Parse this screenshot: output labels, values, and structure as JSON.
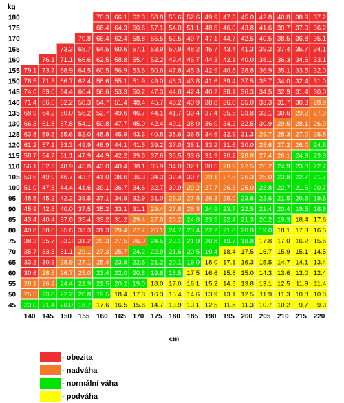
{
  "chart_data": {
    "type": "heatmap",
    "ylabel": "kg",
    "xlabel": "cm",
    "heights": [
      140,
      145,
      150,
      155,
      160,
      165,
      170,
      175,
      180,
      185,
      190,
      195,
      200,
      205,
      210,
      215,
      220
    ],
    "weights": [
      180,
      175,
      170,
      165,
      160,
      155,
      150,
      145,
      140,
      135,
      130,
      125,
      120,
      115,
      110,
      105,
      100,
      95,
      90,
      85,
      80,
      75,
      70,
      65,
      60,
      55,
      50,
      45
    ],
    "values": [
      [
        null,
        null,
        null,
        null,
        70.3,
        66.1,
        62.3,
        58.8,
        55.6,
        52.6,
        49.9,
        47.3,
        45.0,
        42.8,
        40.8,
        38.9,
        37.2
      ],
      [
        null,
        null,
        null,
        null,
        68.4,
        64.3,
        60.6,
        57.1,
        54.0,
        51.1,
        48.5,
        46.0,
        43.8,
        41.6,
        39.7,
        37.9,
        36.2
      ],
      [
        null,
        null,
        null,
        70.8,
        66.4,
        62.4,
        58.8,
        55.5,
        52.5,
        49.7,
        47.1,
        44.7,
        42.5,
        40.5,
        38.5,
        36.8,
        35.1
      ],
      [
        null,
        null,
        73.3,
        68.7,
        64.5,
        60.6,
        57.1,
        53.9,
        50.9,
        48.2,
        45.7,
        43.4,
        41.3,
        39.3,
        37.4,
        35.7,
        34.1
      ],
      [
        null,
        76.1,
        71.1,
        66.6,
        62.5,
        58.8,
        55.4,
        52.2,
        49.4,
        46.7,
        44.3,
        42.1,
        40.0,
        38.1,
        36.3,
        34.6,
        33.1
      ],
      [
        79.1,
        73.7,
        68.9,
        64.5,
        60.5,
        56.9,
        53.6,
        50.6,
        47.8,
        45.3,
        42.9,
        40.8,
        38.8,
        36.9,
        35.1,
        33.5,
        32.0
      ],
      [
        76.5,
        71.3,
        66.7,
        62.4,
        58.6,
        55.1,
        51.9,
        49.0,
        46.3,
        43.8,
        41.6,
        39.4,
        37.5,
        35.7,
        34.0,
        32.4,
        31.0
      ],
      [
        74.0,
        69.0,
        64.4,
        60.4,
        56.6,
        53.3,
        50.2,
        47.3,
        44.8,
        42.4,
        40.2,
        38.1,
        36.3,
        34.5,
        32.9,
        31.4,
        30.0
      ],
      [
        71.4,
        66.6,
        62.2,
        58.3,
        54.7,
        51.4,
        48.4,
        45.7,
        43.2,
        40.9,
        38.8,
        36.8,
        35.0,
        33.3,
        31.7,
        30.3,
        28.9
      ],
      [
        68.9,
        64.2,
        60.0,
        56.2,
        52.7,
        49.6,
        46.7,
        44.1,
        41.7,
        39.4,
        37.4,
        35.5,
        33.8,
        32.1,
        30.6,
        29.2,
        27.9
      ],
      [
        66.3,
        61.8,
        57.8,
        54.1,
        50.8,
        47.7,
        45.0,
        42.4,
        40.1,
        38.0,
        36.0,
        34.2,
        32.5,
        30.9,
        29.5,
        28.1,
        26.9
      ],
      [
        63.8,
        59.5,
        55.6,
        52.0,
        48.8,
        45.9,
        43.3,
        40.8,
        38.6,
        36.5,
        34.6,
        32.9,
        31.3,
        29.7,
        28.3,
        27.0,
        25.8
      ],
      [
        61.2,
        57.1,
        53.3,
        49.9,
        46.9,
        44.1,
        41.5,
        39.2,
        37.0,
        35.1,
        33.2,
        31.6,
        30.0,
        28.6,
        27.2,
        26.0,
        24.8
      ],
      [
        58.7,
        54.7,
        51.1,
        47.9,
        44.9,
        42.2,
        39.8,
        37.6,
        35.5,
        33.6,
        31.9,
        30.2,
        28.8,
        27.4,
        26.1,
        24.9,
        23.8
      ],
      [
        56.1,
        52.3,
        48.9,
        45.8,
        43.0,
        40.4,
        38.1,
        35.9,
        34.0,
        32.1,
        30.5,
        28.9,
        27.5,
        26.2,
        24.9,
        23.8,
        22.7
      ],
      [
        53.6,
        49.9,
        46.7,
        43.7,
        41.0,
        38.6,
        36.3,
        34.3,
        32.4,
        30.7,
        29.1,
        27.6,
        26.3,
        25.0,
        23.8,
        22.7,
        21.7
      ],
      [
        51.0,
        47.6,
        44.4,
        41.6,
        39.1,
        36.7,
        34.6,
        32.7,
        30.9,
        29.2,
        27.7,
        26.3,
        25.0,
        23.8,
        22.7,
        21.6,
        20.7
      ],
      [
        48.5,
        45.2,
        42.2,
        39.5,
        37.1,
        34.9,
        32.9,
        31.0,
        29.3,
        27.8,
        26.3,
        25.0,
        23.8,
        22.6,
        21.5,
        20.6,
        19.6
      ],
      [
        45.9,
        42.8,
        40.0,
        37.5,
        35.2,
        33.1,
        31.1,
        29.4,
        27.8,
        26.3,
        24.9,
        23.7,
        22.5,
        21.4,
        20.4,
        19.5,
        18.6
      ],
      [
        43.4,
        40.4,
        37.8,
        35.4,
        33.2,
        31.2,
        29.4,
        27.8,
        26.2,
        24.8,
        23.5,
        22.4,
        21.3,
        20.2,
        19.3,
        18.4,
        17.6
      ],
      [
        40.8,
        38.0,
        35.6,
        33.3,
        31.3,
        29.4,
        27.7,
        26.1,
        24.7,
        23.4,
        22.2,
        21.0,
        20.0,
        19.0,
        18.1,
        17.3,
        16.5
      ],
      [
        38.3,
        35.7,
        33.3,
        31.2,
        29.3,
        27.5,
        26.0,
        24.5,
        23.1,
        21.9,
        20.8,
        19.7,
        18.8,
        17.8,
        17.0,
        16.2,
        15.5
      ],
      [
        35.7,
        33.3,
        31.1,
        29.1,
        27.3,
        25.7,
        24.2,
        22.9,
        21.6,
        20.5,
        19.4,
        18.4,
        17.5,
        16.7,
        15.9,
        15.1,
        14.5
      ],
      [
        33.2,
        30.9,
        28.9,
        27.1,
        25.4,
        23.9,
        22.5,
        21.2,
        20.1,
        19.0,
        18.0,
        17.1,
        16.3,
        15.5,
        14.7,
        14.1,
        13.4
      ],
      [
        30.6,
        28.5,
        26.7,
        25.0,
        23.4,
        22.0,
        20.8,
        19.6,
        18.5,
        17.5,
        16.6,
        15.8,
        15.0,
        14.3,
        13.6,
        13.0,
        12.4
      ],
      [
        28.1,
        26.2,
        24.4,
        22.9,
        21.5,
        20.2,
        19.0,
        18.0,
        17.0,
        16.1,
        15.2,
        14.5,
        13.8,
        13.1,
        12.5,
        11.9,
        11.4
      ],
      [
        25.5,
        23.8,
        22.2,
        20.8,
        19.5,
        18.4,
        17.3,
        16.3,
        15.4,
        14.6,
        13.9,
        13.1,
        12.5,
        11.9,
        11.3,
        10.8,
        10.3
      ],
      [
        23.0,
        21.4,
        20.0,
        18.7,
        17.6,
        16.5,
        15.6,
        14.7,
        13.9,
        13.1,
        12.5,
        11.8,
        11.3,
        10.7,
        10.2,
        9.7,
        9.3
      ]
    ],
    "categories_bmi": [
      {
        "label": "- obezita",
        "color": "#ef3030",
        "min": 30
      },
      {
        "label": "- nadváha",
        "color": "#f37a2a",
        "min": 25
      },
      {
        "label": "- normální váha",
        "color": "#00e400",
        "min": 18.5
      },
      {
        "label": "- podváha",
        "color": "#ffff00",
        "min": 0
      }
    ]
  }
}
